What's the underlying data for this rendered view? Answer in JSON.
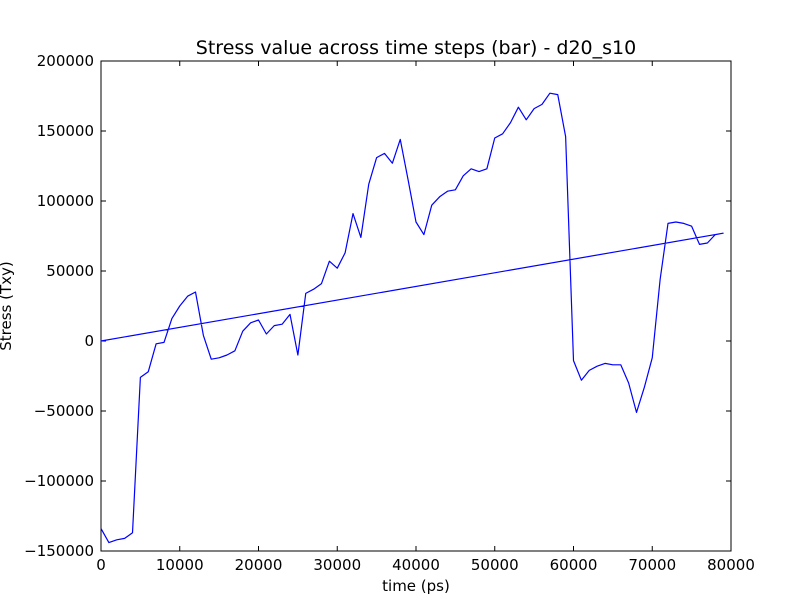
{
  "chart_data": {
    "type": "line",
    "title": "Stress value across time steps (bar) - d20_s10",
    "xlabel": "time (ps)",
    "ylabel": "Stress (Txy)",
    "xlim": [
      0,
      80000
    ],
    "ylim": [
      -150000,
      200000
    ],
    "grid": false,
    "x_ticks": [
      0,
      10000,
      20000,
      30000,
      40000,
      50000,
      60000,
      70000,
      80000
    ],
    "x_tick_labels": [
      "0",
      "10000",
      "20000",
      "30000",
      "40000",
      "50000",
      "60000",
      "70000",
      "80000"
    ],
    "y_ticks": [
      -150000,
      -100000,
      -50000,
      0,
      50000,
      100000,
      150000,
      200000
    ],
    "y_tick_labels": [
      "−150000",
      "−100000",
      "−50000",
      "0",
      "50000",
      "100000",
      "150000",
      "200000"
    ],
    "line_color": "#0000ff",
    "series": [
      {
        "points": [
          [
            0,
            -134000
          ],
          [
            1000,
            -144000
          ],
          [
            2000,
            -142000
          ],
          [
            3000,
            -141000
          ],
          [
            4000,
            -137000
          ],
          [
            5000,
            -26000
          ],
          [
            6000,
            -22000
          ],
          [
            7000,
            -2000
          ],
          [
            8000,
            -1000
          ],
          [
            9000,
            16000
          ],
          [
            10000,
            25000
          ],
          [
            11000,
            32000
          ],
          [
            12000,
            35000
          ],
          [
            13000,
            4000
          ],
          [
            14000,
            -13000
          ],
          [
            15000,
            -12000
          ],
          [
            16000,
            -10000
          ],
          [
            17000,
            -7000
          ],
          [
            18000,
            7000
          ],
          [
            19000,
            13000
          ],
          [
            20000,
            15000
          ],
          [
            21000,
            5000
          ],
          [
            22000,
            11000
          ],
          [
            23000,
            12000
          ],
          [
            24000,
            19000
          ],
          [
            25000,
            -10000
          ],
          [
            26000,
            34000
          ],
          [
            27000,
            37000
          ],
          [
            28000,
            41000
          ],
          [
            29000,
            57000
          ],
          [
            30000,
            52000
          ],
          [
            31000,
            63000
          ],
          [
            32000,
            91000
          ],
          [
            33000,
            74000
          ],
          [
            34000,
            112000
          ],
          [
            35000,
            131000
          ],
          [
            36000,
            134000
          ],
          [
            37000,
            127000
          ],
          [
            38000,
            144000
          ],
          [
            39000,
            115000
          ],
          [
            40000,
            85000
          ],
          [
            41000,
            76000
          ],
          [
            42000,
            97000
          ],
          [
            43000,
            103000
          ],
          [
            44000,
            107000
          ],
          [
            45000,
            108000
          ],
          [
            46000,
            118000
          ],
          [
            47000,
            123000
          ],
          [
            48000,
            121000
          ],
          [
            49000,
            123000
          ],
          [
            50000,
            145000
          ],
          [
            51000,
            148000
          ],
          [
            52000,
            156000
          ],
          [
            53000,
            167000
          ],
          [
            54000,
            158000
          ],
          [
            55000,
            166000
          ],
          [
            56000,
            169000
          ],
          [
            57000,
            177000
          ],
          [
            58000,
            176000
          ],
          [
            59000,
            146000
          ],
          [
            60000,
            -14000
          ],
          [
            61000,
            -28000
          ],
          [
            62000,
            -21000
          ],
          [
            63000,
            -18000
          ],
          [
            64000,
            -16000
          ],
          [
            65000,
            -17000
          ],
          [
            66000,
            -17000
          ],
          [
            67000,
            -30000
          ],
          [
            68000,
            -51000
          ],
          [
            69000,
            -33000
          ],
          [
            70000,
            -12000
          ],
          [
            71000,
            44000
          ],
          [
            72000,
            84000
          ],
          [
            73000,
            85000
          ],
          [
            74000,
            84000
          ],
          [
            75000,
            82000
          ],
          [
            76000,
            69000
          ],
          [
            77000,
            70000
          ],
          [
            78000,
            76000
          ],
          [
            79000,
            77000
          ],
          [
            0,
            0
          ],
          [
            79000,
            77000
          ]
        ]
      }
    ]
  }
}
